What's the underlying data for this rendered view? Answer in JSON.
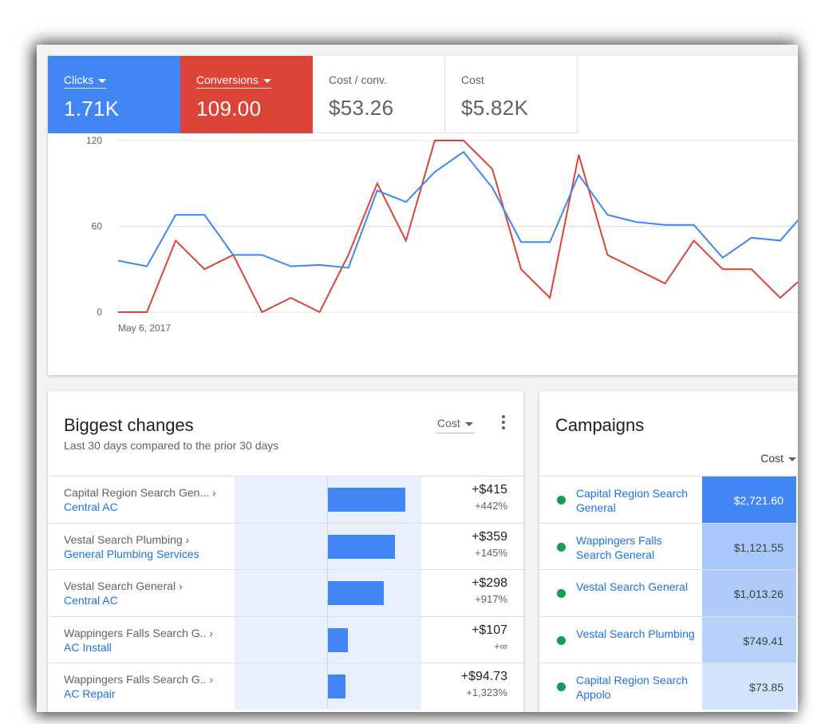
{
  "metrics": [
    {
      "label": "Clicks",
      "value": "1.71K",
      "color": "#4285f4"
    },
    {
      "label": "Conversions",
      "value": "109.00",
      "color": "#db4437"
    },
    {
      "label": "Cost / conv.",
      "value": "$53.26"
    },
    {
      "label": "Cost",
      "value": "$5.82K"
    }
  ],
  "chart_data": {
    "type": "line",
    "x_start_label": "May 6, 2017",
    "yticks": [
      0,
      60,
      120
    ],
    "ylim": [
      0,
      120
    ],
    "grid": true,
    "series": [
      {
        "name": "Clicks",
        "color": "#4285f4",
        "values": [
          36,
          32,
          68,
          68,
          40,
          40,
          32,
          33,
          31,
          85,
          77,
          98,
          112,
          87,
          49,
          49,
          96,
          68,
          63,
          61,
          61,
          38,
          52,
          50,
          73
        ]
      },
      {
        "name": "Conversions",
        "color": "#db4437",
        "values": [
          0,
          0,
          50,
          30,
          40,
          0,
          10,
          0,
          40,
          90,
          50,
          120,
          120,
          100,
          30,
          10,
          110,
          40,
          30,
          20,
          50,
          30,
          30,
          10,
          28
        ]
      }
    ]
  },
  "changes": {
    "title": "Biggest changes",
    "subtitle": "Last 30 days compared to the prior 30 days",
    "sort_label": "Cost",
    "rows": [
      {
        "parent": "Capital Region Search Gen... ›",
        "child": "Central AC",
        "amount": "+$415",
        "pct": "+442%",
        "value": 415
      },
      {
        "parent": "Vestal Search Plumbing ›",
        "child": "General Plumbing Services",
        "amount": "+$359",
        "pct": "+145%",
        "value": 359
      },
      {
        "parent": "Vestal Search General ›",
        "child": "Central AC",
        "amount": "+$298",
        "pct": "+917%",
        "value": 298
      },
      {
        "parent": "Wappingers Falls Search G.. ›",
        "child": "AC Install",
        "amount": "+$107",
        "pct": "+∞",
        "value": 107
      },
      {
        "parent": "Wappingers Falls Search G.. ›",
        "child": "AC Repair",
        "amount": "+$94.73",
        "pct": "+1,323%",
        "value": 94.73
      }
    ]
  },
  "campaigns": {
    "title": "Campaigns",
    "cost_header": "Cost",
    "status_color": "#0f9d58",
    "rows": [
      {
        "name": "Capital Region Search General",
        "cost": "$2,721.60",
        "value": 2721.6
      },
      {
        "name": "Wappingers Falls Search General",
        "cost": "$1,121.55",
        "value": 1121.55
      },
      {
        "name": "Vestal Search General",
        "cost": "$1,013.26",
        "value": 1013.26
      },
      {
        "name": "Vestal Search Plumbing",
        "cost": "$749.41",
        "value": 749.41
      },
      {
        "name": "Capital Region Search Appolo",
        "cost": "$73.85",
        "value": 73.85
      }
    ]
  }
}
